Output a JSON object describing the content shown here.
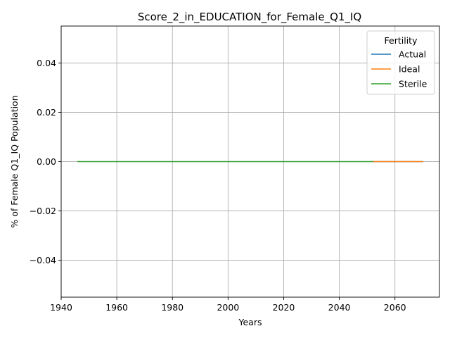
{
  "chart_data": {
    "type": "line",
    "title": "Score_2_in_EDUCATION_for_Female_Q1_IQ",
    "xlabel": "Years",
    "ylabel": "% of Female Q1_IQ Population",
    "xlim": [
      1940,
      2076
    ],
    "ylim": [
      -0.055,
      0.055
    ],
    "x_ticks": [
      1940,
      1960,
      1980,
      2000,
      2020,
      2040,
      2060
    ],
    "y_ticks": [
      -0.04,
      -0.02,
      0.0,
      0.02,
      0.04
    ],
    "y_tick_labels": [
      "−0.04",
      "−0.02",
      "0.00",
      "0.02",
      "0.04"
    ],
    "grid": true,
    "legend": {
      "title": "Fertility",
      "placement": "top-right"
    },
    "series": [
      {
        "name": "Actual",
        "color": "#1f77b4",
        "x": [
          2052,
          2070
        ],
        "y": [
          0,
          0
        ]
      },
      {
        "name": "Ideal",
        "color": "#ff7f0e",
        "x": [
          2052,
          2070
        ],
        "y": [
          0,
          0
        ]
      },
      {
        "name": "Sterile",
        "color": "#2ca02c",
        "x": [
          1946,
          2052
        ],
        "y": [
          0,
          0
        ]
      }
    ]
  }
}
